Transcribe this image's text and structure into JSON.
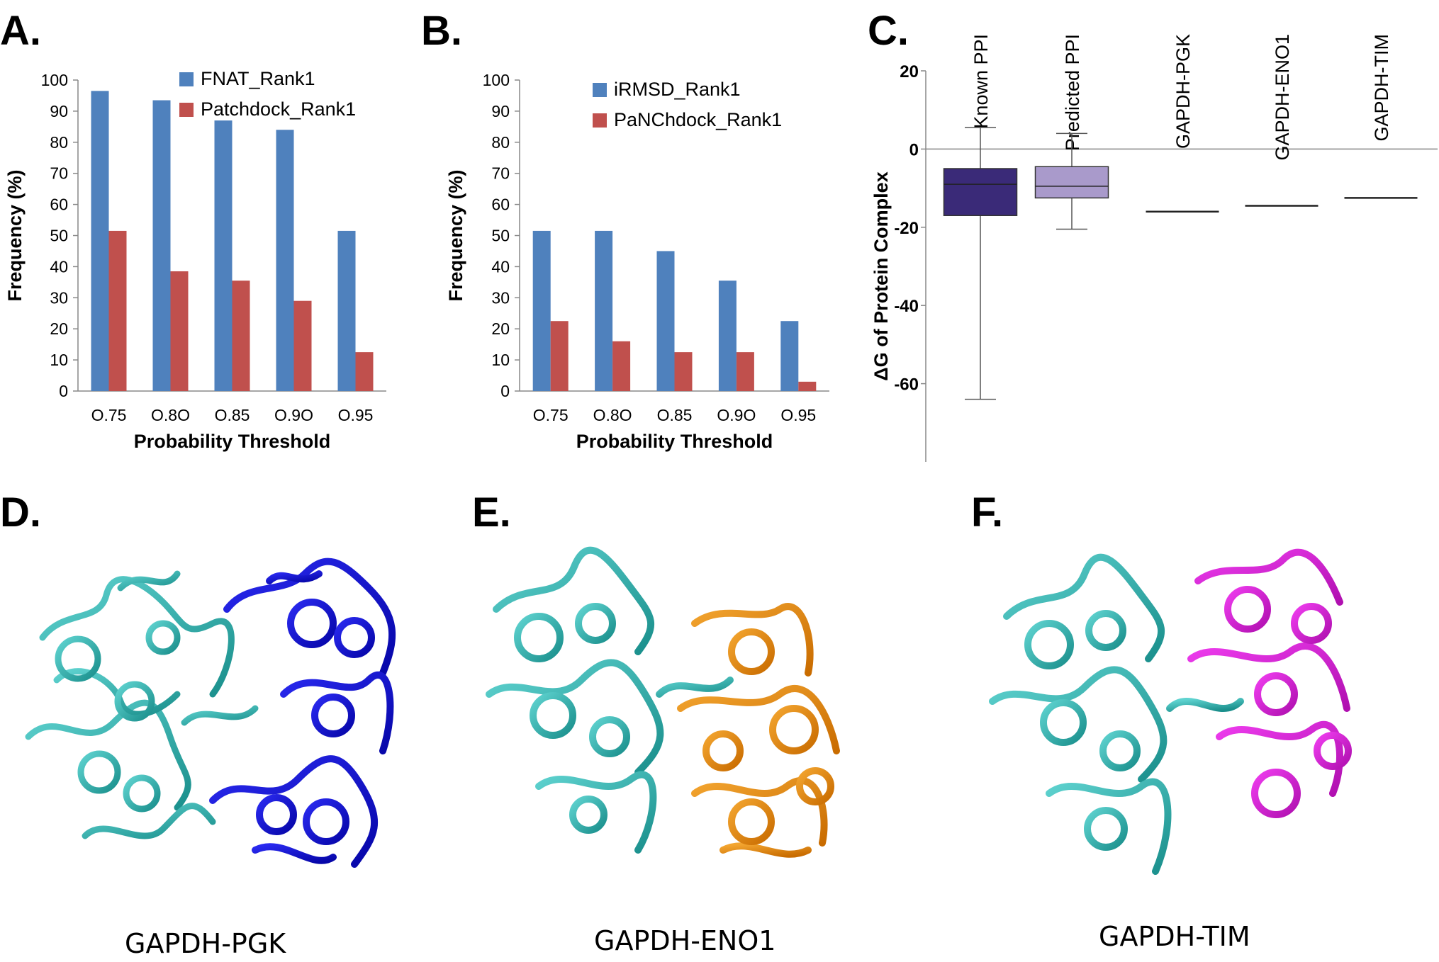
{
  "panels": {
    "A": "A.",
    "B": "B.",
    "C": "C.",
    "D": "D.",
    "E": "E.",
    "F": "F."
  },
  "colors": {
    "blue_bar": "#4f81bd",
    "red_bar": "#c0504d",
    "known_box": "#3a2a78",
    "predicted_box": "#a99acb",
    "teal": "#2fb3b0",
    "blue_protein": "#1010d0",
    "orange_protein": "#e8890c",
    "magenta_protein": "#d81bd8"
  },
  "captions": {
    "D": "GAPDH-PGK",
    "E": "GAPDH-ENO1",
    "F": "GAPDH-TIM"
  },
  "chart_data": [
    {
      "type": "bar",
      "panel": "A",
      "categories": [
        "O.75",
        "O.8O",
        "O.85",
        "O.9O",
        "O.95"
      ],
      "series": [
        {
          "name": "FNAT_Rank1",
          "color": "#4f81bd",
          "values": [
            96.5,
            93.5,
            87,
            84,
            51.5
          ]
        },
        {
          "name": "Patchdock_Rank1",
          "color": "#c0504d",
          "values": [
            51.5,
            38.5,
            35.5,
            29,
            12.5
          ]
        }
      ],
      "xlabel": "Probability Threshold",
      "ylabel": "Frequency (%)",
      "ylim": [
        0,
        100
      ],
      "yticks": [
        "0",
        "10",
        "20",
        "30",
        "40",
        "50",
        "60",
        "70",
        "80",
        "90",
        "100"
      ],
      "legend": "top-right"
    },
    {
      "type": "bar",
      "panel": "B",
      "categories": [
        "O.75",
        "O.8O",
        "O.85",
        "O.9O",
        "O.95"
      ],
      "series": [
        {
          "name": "iRMSD_Rank1",
          "color": "#4f81bd",
          "values": [
            51.5,
            51.5,
            45,
            35.5,
            22.5
          ]
        },
        {
          "name": "PaNChdock_Rank1",
          "color": "#c0504d",
          "values": [
            22.5,
            16,
            12.5,
            12.5,
            3
          ]
        }
      ],
      "xlabel": "Probability Threshold",
      "ylabel": "Frequency (%)",
      "ylim": [
        0,
        100
      ],
      "yticks": [
        "0",
        "10",
        "20",
        "30",
        "40",
        "50",
        "60",
        "70",
        "80",
        "90",
        "100"
      ],
      "legend": "top-right"
    },
    {
      "type": "box",
      "panel": "C",
      "categories": [
        "Known PPI",
        "Predicted PPI",
        "GAPDH-PGK",
        "GAPDH-ENO1",
        "GAPDH-TIM"
      ],
      "boxes": [
        {
          "name": "Known PPI",
          "min": -64,
          "q1": -17,
          "median": -9,
          "q3": -5,
          "max": 5.5,
          "color": "#3a2a78"
        },
        {
          "name": "Predicted PPI",
          "min": -20.5,
          "q1": -12.5,
          "median": -9.5,
          "q3": -4.5,
          "max": 4,
          "color": "#a99acb"
        },
        {
          "name": "GAPDH-PGK",
          "value": -16
        },
        {
          "name": "GAPDH-ENO1",
          "value": -14.5
        },
        {
          "name": "GAPDH-TIM",
          "value": -12.5
        }
      ],
      "ylabel": "ΔG of Protein Complex",
      "ylim": [
        -80,
        20
      ],
      "yticks": [
        "20",
        "0",
        "-20",
        "-40",
        "-60"
      ]
    }
  ]
}
